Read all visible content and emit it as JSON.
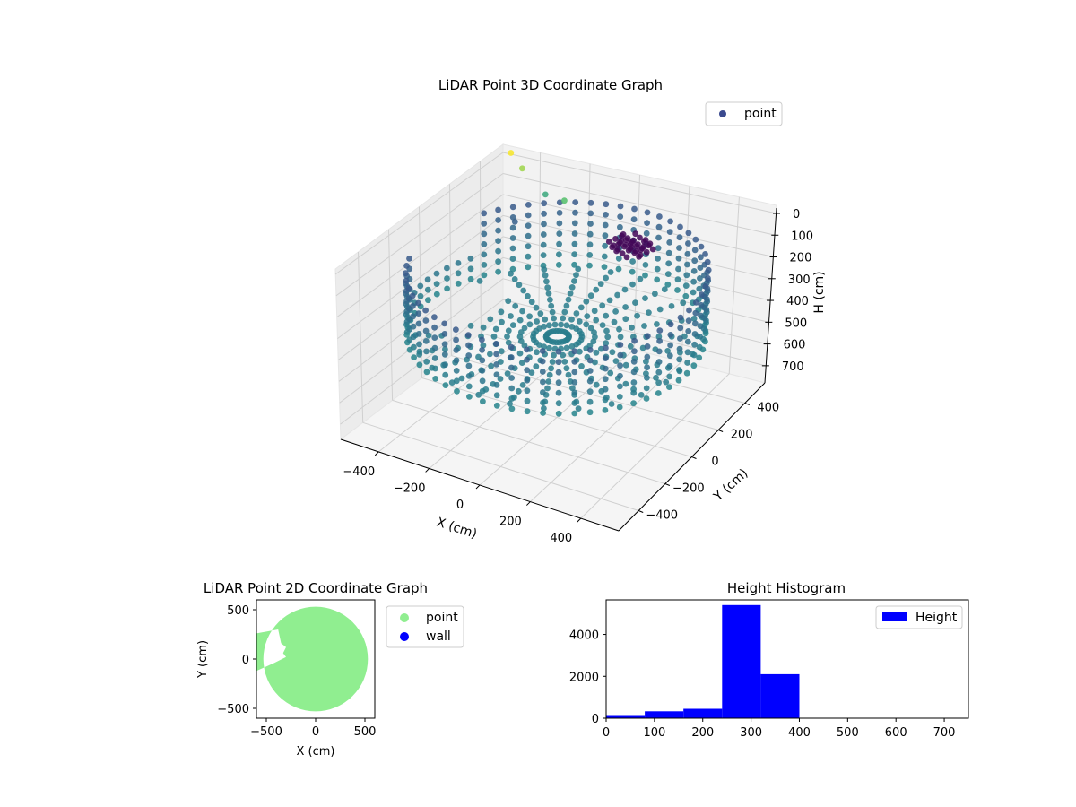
{
  "chart_data": [
    {
      "type": "scatter",
      "title": "LiDAR Point 3D Coordinate Graph",
      "xlabel": "X (cm)",
      "ylabel": "Y (cm)",
      "zlabel": "H (cm)",
      "xticks": [
        -400,
        -200,
        0,
        200,
        400
      ],
      "yticks": [
        -400,
        -200,
        0,
        200,
        400
      ],
      "zticks": [
        0,
        100,
        200,
        300,
        400,
        500,
        600,
        700
      ],
      "xlim": [
        -550,
        550
      ],
      "ylim": [
        -550,
        550
      ],
      "zlim": [
        0,
        750
      ],
      "z_axis_inverted": true,
      "grid": true,
      "legend": {
        "position": "top-right",
        "entries": [
          {
            "label": "point",
            "color": "#3b4a8f"
          }
        ]
      },
      "colormap": "viridis",
      "description_data": {
        "wall_radius": 520,
        "wall_height_range": [
          100,
          400
        ],
        "floor_height": 400
      }
    },
    {
      "type": "scatter",
      "title": "LiDAR Point 2D Coordinate Graph",
      "xlabel": "X (cm)",
      "ylabel": "Y (cm)",
      "xticks": [
        -500,
        0,
        500
      ],
      "yticks": [
        -500,
        0,
        500
      ],
      "xlim": [
        -600,
        600
      ],
      "ylim": [
        -600,
        600
      ],
      "legend": {
        "position": "outside-right",
        "entries": [
          {
            "label": "point",
            "color": "#90ee90"
          },
          {
            "label": "wall",
            "color": "#0000ff"
          }
        ]
      },
      "series": [
        {
          "name": "point",
          "color": "#90ee90",
          "radius": 530
        }
      ]
    },
    {
      "type": "bar",
      "title": "Height Histogram",
      "xticks": [
        0,
        100,
        200,
        300,
        400,
        500,
        600,
        700
      ],
      "yticks": [
        0,
        2000,
        4000
      ],
      "xlim": [
        0,
        750
      ],
      "ylim": [
        0,
        5650
      ],
      "bins": [
        {
          "start": 0,
          "end": 80,
          "count": 150
        },
        {
          "start": 80,
          "end": 160,
          "count": 330
        },
        {
          "start": 160,
          "end": 240,
          "count": 450
        },
        {
          "start": 240,
          "end": 320,
          "count": 5400
        },
        {
          "start": 320,
          "end": 400,
          "count": 2100
        },
        {
          "start": 400,
          "end": 480,
          "count": 0
        },
        {
          "start": 480,
          "end": 560,
          "count": 0
        },
        {
          "start": 560,
          "end": 640,
          "count": 0
        },
        {
          "start": 640,
          "end": 720,
          "count": 0
        }
      ],
      "legend": {
        "position": "top-right",
        "entries": [
          {
            "label": "Height",
            "color": "#0000ff"
          }
        ]
      },
      "series": [
        {
          "name": "Height",
          "color": "#0000ff"
        }
      ]
    }
  ]
}
